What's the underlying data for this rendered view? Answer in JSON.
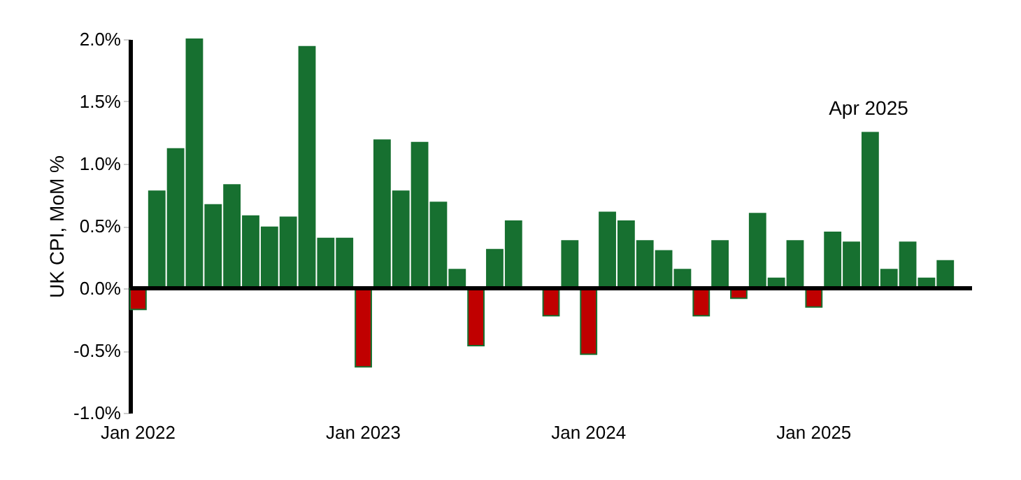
{
  "chart_data": {
    "type": "bar",
    "ylabel": "UK CPI, MoM %",
    "categories": [
      "Jan 2022",
      null,
      null,
      null,
      null,
      null,
      null,
      null,
      null,
      null,
      null,
      null,
      "Jan 2023",
      null,
      null,
      null,
      null,
      null,
      null,
      null,
      null,
      null,
      null,
      null,
      "Jan 2024",
      null,
      null,
      null,
      null,
      null,
      null,
      null,
      null,
      null,
      null,
      null,
      "Jan 2025",
      null,
      null,
      null,
      null,
      null,
      null,
      null
    ],
    "values": [
      -0.17,
      0.78,
      1.12,
      2.0,
      0.67,
      0.83,
      0.58,
      0.49,
      0.57,
      1.94,
      0.4,
      0.4,
      -0.63,
      1.19,
      0.78,
      1.17,
      0.69,
      0.15,
      -0.46,
      0.31,
      0.54,
      0.0,
      -0.22,
      0.38,
      -0.53,
      0.61,
      0.54,
      0.38,
      0.3,
      0.15,
      -0.22,
      0.38,
      -0.08,
      0.6,
      0.08,
      0.38,
      -0.15,
      0.45,
      0.37,
      1.25,
      0.15,
      0.37,
      0.08,
      0.22
    ],
    "colors": [
      "#c00000",
      "#177030",
      "#177030",
      "#177030",
      "#177030",
      "#177030",
      "#177030",
      "#177030",
      "#177030",
      "#177030",
      "#177030",
      "#177030",
      "#c00000",
      "#177030",
      "#177030",
      "#177030",
      "#177030",
      "#177030",
      "#c00000",
      "#177030",
      "#177030",
      "#177030",
      "#c00000",
      "#177030",
      "#c00000",
      "#177030",
      "#177030",
      "#177030",
      "#177030",
      "#177030",
      "#c00000",
      "#177030",
      "#c00000",
      "#177030",
      "#177030",
      "#177030",
      "#c00000",
      "#177030",
      "#177030",
      "#177030",
      "#177030",
      "#177030",
      "#177030",
      "#177030"
    ],
    "ylim": [
      -1.0,
      2.0
    ],
    "yticks": [
      {
        "value": -1.0,
        "label": "-1.0%"
      },
      {
        "value": -0.5,
        "label": "-0.5%"
      },
      {
        "value": 0.0,
        "label": "0.0%"
      },
      {
        "value": 0.5,
        "label": "0.5%"
      },
      {
        "value": 1.0,
        "label": "1.0%"
      },
      {
        "value": 1.5,
        "label": "1.5%"
      },
      {
        "value": 2.0,
        "label": "2.0%"
      }
    ],
    "ref_lines": [
      {
        "axis": "y",
        "value": 0.0,
        "color": "#000000"
      }
    ],
    "annotations": [
      "Apr 2025"
    ],
    "grid": false
  }
}
